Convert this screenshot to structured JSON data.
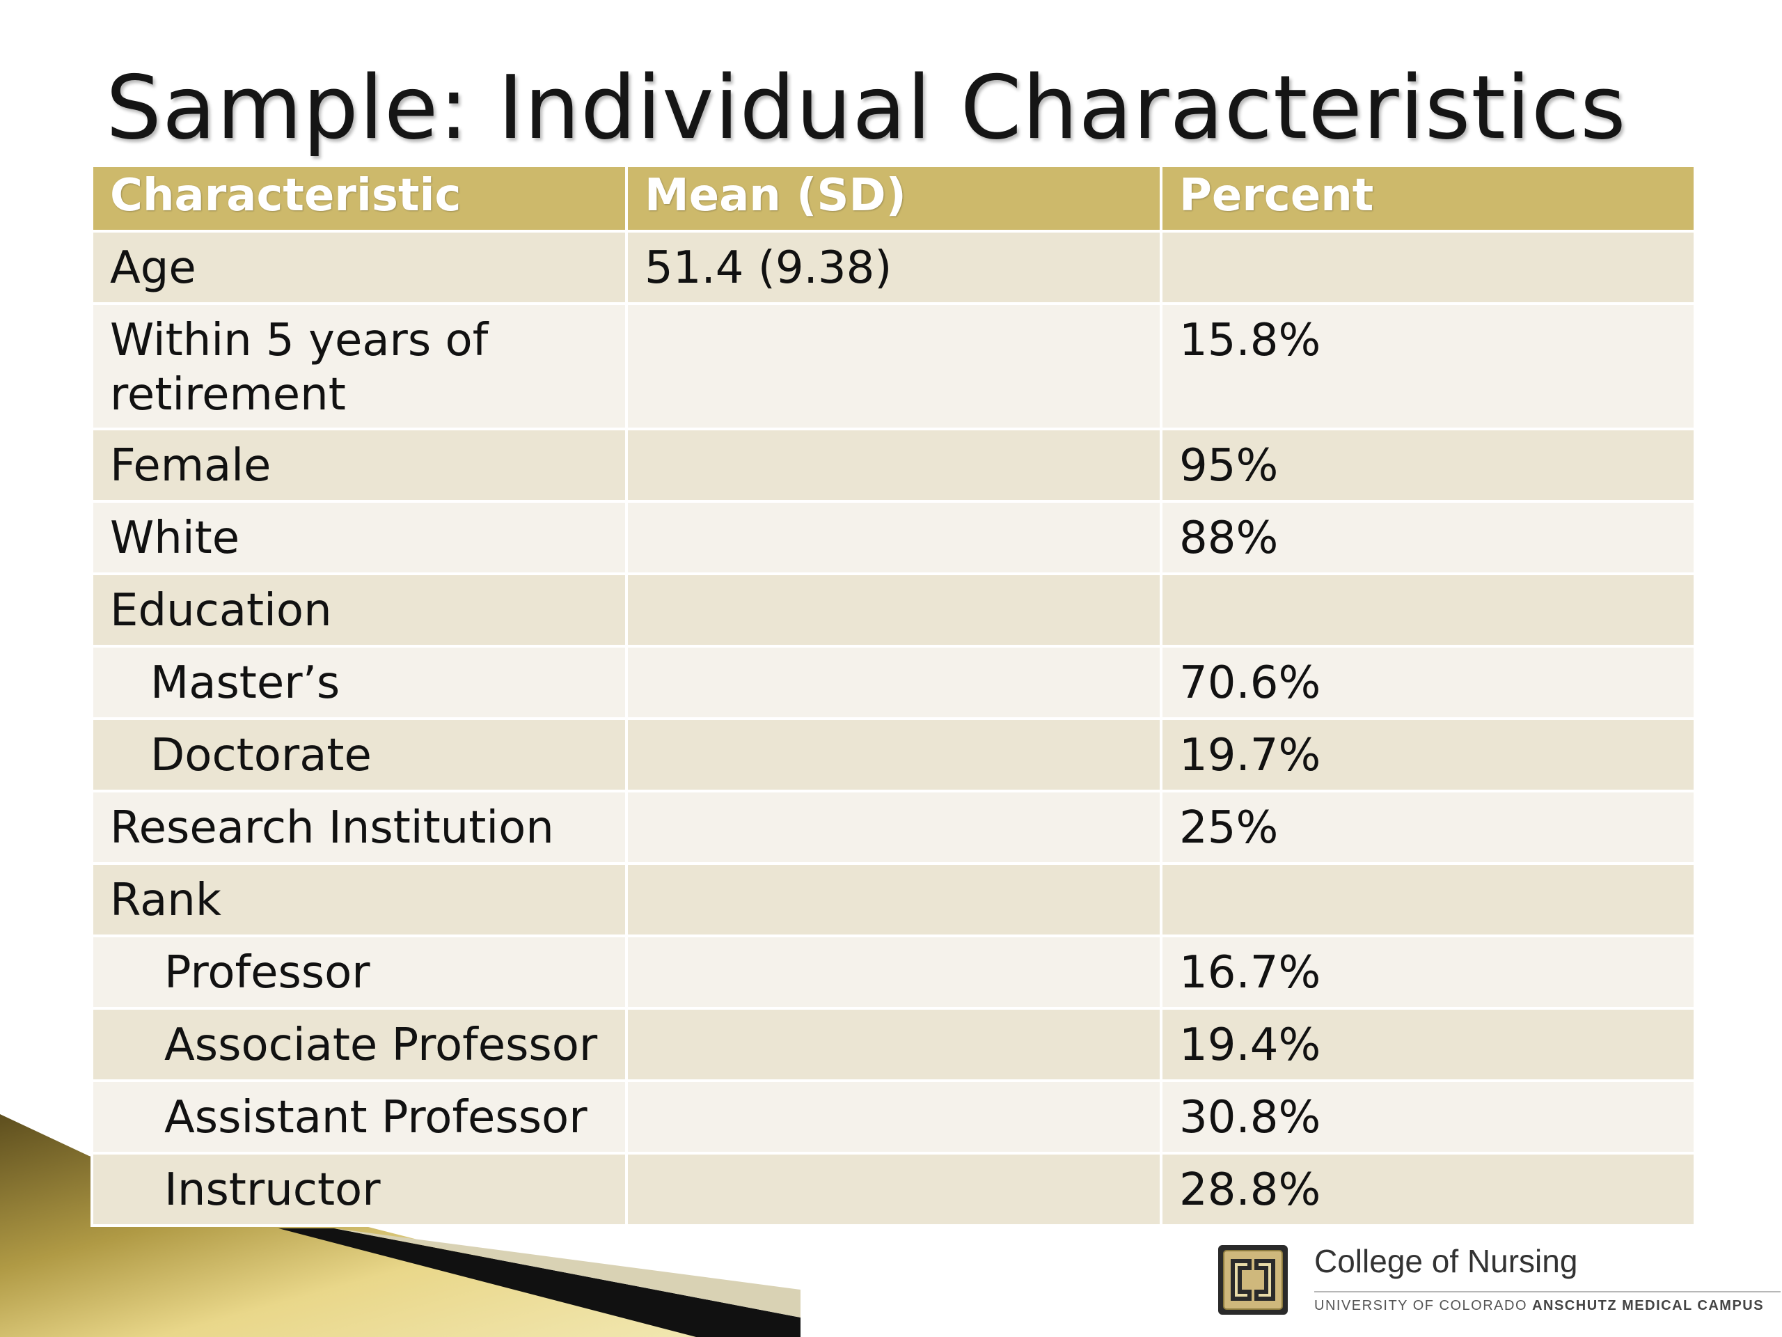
{
  "slide": {
    "title": "Sample: Individual Characteristics"
  },
  "table": {
    "headers": [
      "Characteristic",
      "Mean (SD)",
      "Percent"
    ],
    "rows": [
      {
        "characteristic": "Age",
        "mean_sd": "51.4 (9.38)",
        "percent": ""
      },
      {
        "characteristic": "Within 5 years of retirement",
        "mean_sd": "",
        "percent": "15.8%"
      },
      {
        "characteristic": "Female",
        "mean_sd": "",
        "percent": "95%"
      },
      {
        "characteristic": "White",
        "mean_sd": "",
        "percent": "88%"
      },
      {
        "characteristic": "Education",
        "mean_sd": "",
        "percent": ""
      },
      {
        "characteristic": "Master’s",
        "mean_sd": "",
        "percent": "70.6%"
      },
      {
        "characteristic": "Doctorate",
        "mean_sd": "",
        "percent": "19.7%"
      },
      {
        "characteristic": "Research Institution",
        "mean_sd": "",
        "percent": "25%"
      },
      {
        "characteristic": "Rank",
        "mean_sd": "",
        "percent": ""
      },
      {
        "characteristic": "Professor",
        "mean_sd": "",
        "percent": "16.7%"
      },
      {
        "characteristic": "Associate Professor",
        "mean_sd": "",
        "percent": "19.4%"
      },
      {
        "characteristic": "Assistant Professor",
        "mean_sd": "",
        "percent": "30.8%"
      },
      {
        "characteristic": "Instructor",
        "mean_sd": "",
        "percent": "28.8%"
      }
    ]
  },
  "branding": {
    "college": "College of Nursing",
    "university_prefix": "UNIVERSITY OF COLORADO",
    "campus": "ANSCHUTZ MEDICAL CAMPUS",
    "logo_monogram": "CU",
    "gold": "#cdb96b"
  }
}
